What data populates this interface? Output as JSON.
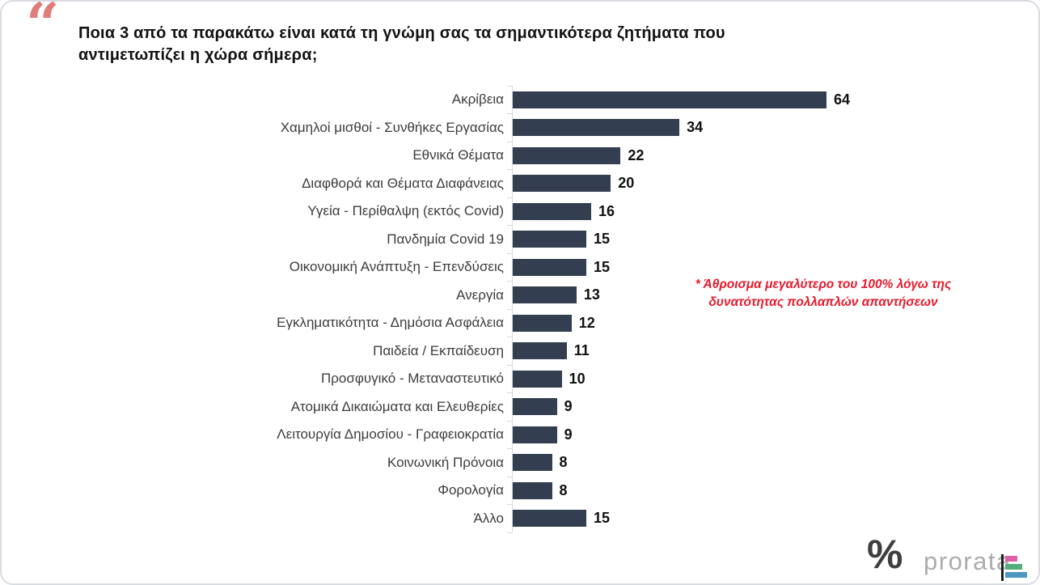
{
  "header": {
    "quote_glyph": "“",
    "title": "Ποια 3 από τα παρακάτω είναι κατά τη γνώμη σας τα σημαντικότερα ζητήματα που αντιμετωπίζει η χώρα σήμερα;"
  },
  "chart_data": {
    "type": "bar",
    "orientation": "horizontal",
    "categories": [
      "Ακρίβεια",
      "Χαμηλοί μισθοί - Συνθήκες Εργασίας",
      "Εθνικά Θέματα",
      "Διαφθορά και Θέματα Διαφάνειας",
      "Υγεία - Περίθαλψη (εκτός Covid)",
      "Πανδημία Covid 19",
      "Οικονομική Ανάπτυξη - Επενδύσεις",
      "Ανεργία",
      "Εγκληματικότητα - Δημόσια Ασφάλεια",
      "Παιδεία / Εκπαίδευση",
      "Προσφυγικό - Μεταναστευτικό",
      "Ατομικά Δικαιώματα και Ελευθερίες",
      "Λειτουργία Δημοσίου - Γραφειοκρατία",
      "Κοινωνική Πρόνοια",
      "Φορολογία",
      "Άλλο"
    ],
    "values": [
      64,
      34,
      22,
      20,
      16,
      15,
      15,
      13,
      12,
      11,
      10,
      9,
      9,
      8,
      8,
      15
    ],
    "title": "",
    "xlabel": "",
    "ylabel": "",
    "xlim": [
      0,
      64
    ],
    "grid": "off",
    "legend": "none",
    "bar_color": "#333F50",
    "axis_color": "#D9D9D9",
    "value_label_color": "#111111"
  },
  "note": {
    "line1": "* Άθροισμα μεγαλύτερο του 100% λόγω της",
    "line2": "δυνατότητας πολλαπλών απαντήσεων",
    "color": "#E8192C"
  },
  "logo": {
    "percent_glyph": "%",
    "brand": "prorata",
    "icon_colors": {
      "axis": "#1E1E1E",
      "pink": "#E05FA9",
      "green": "#53AE7E",
      "blue": "#4E96C4"
    }
  }
}
